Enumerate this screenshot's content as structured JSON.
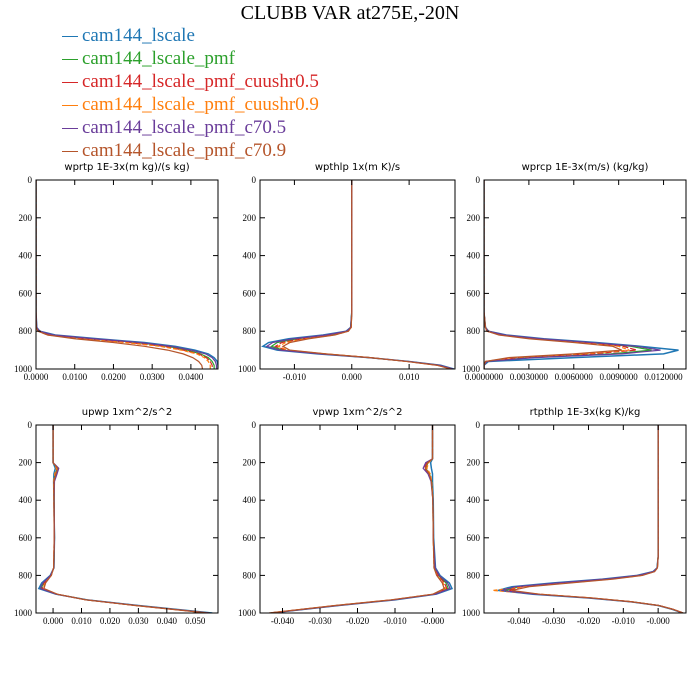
{
  "title": "CLUBB VAR at275E,-20N",
  "legend": [
    {
      "name": "cam144_lscale",
      "color": "#1f77b4"
    },
    {
      "name": "cam144_lscale_pmf",
      "color": "#2ca02c"
    },
    {
      "name": "cam144_lscale_pmf_cuushr0.5",
      "color": "#d62728"
    },
    {
      "name": "cam144_lscale_pmf_cuushr0.9",
      "color": "#ff7f0e"
    },
    {
      "name": "cam144_lscale_pmf_c70.5",
      "color": "#6a3d9a"
    },
    {
      "name": "cam144_lscale_pmf_c70.9",
      "color": "#b5552b"
    }
  ],
  "chart_data": [
    {
      "type": "line",
      "title": "wprtp  1E-3x(m kg)/(s kg)",
      "xlim": [
        0.0,
        0.047
      ],
      "ylim": [
        0,
        1000
      ],
      "y_inverted": true,
      "xticks": [
        0.0,
        0.01,
        0.02,
        0.03,
        0.04
      ],
      "xtick_labels": [
        "0.0000",
        "0.0100",
        "0.0200",
        "0.0300",
        "0.0400"
      ],
      "yticks": [
        0,
        200,
        400,
        600,
        800,
        1000
      ],
      "ytick_labels": [
        "0",
        "200",
        "400",
        "600",
        "800",
        "1000"
      ],
      "y": [
        0,
        700,
        780,
        800,
        820,
        840,
        860,
        880,
        900,
        920,
        940,
        960,
        980,
        1000
      ],
      "series": [
        {
          "values": [
            0,
            0,
            0.0002,
            0.001,
            0.005,
            0.016,
            0.028,
            0.036,
            0.041,
            0.0445,
            0.046,
            0.0468,
            0.047,
            0.047
          ]
        },
        {
          "values": [
            0,
            0,
            0.0001,
            0.0007,
            0.004,
            0.014,
            0.026,
            0.034,
            0.039,
            0.0425,
            0.0445,
            0.0455,
            0.046,
            0.046
          ]
        },
        {
          "values": [
            0,
            0,
            0.0001,
            0.0006,
            0.0035,
            0.012,
            0.024,
            0.033,
            0.038,
            0.042,
            0.044,
            0.045,
            0.0455,
            0.0455
          ]
        },
        {
          "values": [
            0,
            0,
            0.0001,
            0.0005,
            0.003,
            0.011,
            0.023,
            0.032,
            0.0375,
            0.0415,
            0.0435,
            0.0445,
            0.045,
            0.045
          ]
        },
        {
          "values": [
            0,
            0,
            0.0002,
            0.0009,
            0.0045,
            0.015,
            0.027,
            0.035,
            0.04,
            0.0438,
            0.0455,
            0.0463,
            0.0466,
            0.0466
          ]
        },
        {
          "values": [
            0,
            0,
            0.0001,
            0.0005,
            0.003,
            0.01,
            0.02,
            0.028,
            0.034,
            0.038,
            0.0405,
            0.042,
            0.0428,
            0.043
          ]
        }
      ]
    },
    {
      "type": "line",
      "title": "wpthlp  1x(m K)/s",
      "xlim": [
        -0.016,
        0.018
      ],
      "ylim": [
        0,
        1000
      ],
      "y_inverted": true,
      "xticks": [
        -0.01,
        0.0,
        0.01
      ],
      "xtick_labels": [
        "-0.010",
        "0.000",
        "0.010"
      ],
      "yticks": [
        0,
        200,
        400,
        600,
        800,
        1000
      ],
      "ytick_labels": [
        "0",
        "200",
        "400",
        "600",
        "800",
        "1000"
      ],
      "y": [
        0,
        700,
        780,
        800,
        820,
        840,
        860,
        880,
        900,
        920,
        940,
        960,
        980,
        1000
      ],
      "series": [
        {
          "values": [
            0,
            0,
            -0.0002,
            -0.001,
            -0.005,
            -0.011,
            -0.0145,
            -0.0155,
            -0.013,
            -0.006,
            0.003,
            0.01,
            0.0155,
            0.0178
          ]
        },
        {
          "values": [
            0,
            0,
            -0.0002,
            -0.0008,
            -0.004,
            -0.0095,
            -0.013,
            -0.014,
            -0.012,
            -0.005,
            0.003,
            0.0098,
            0.0152,
            0.0176
          ]
        },
        {
          "values": [
            0,
            0,
            -0.0001,
            -0.0007,
            -0.0035,
            -0.0085,
            -0.0122,
            -0.0133,
            -0.0115,
            -0.0048,
            0.0032,
            0.0097,
            0.015,
            0.0175
          ]
        },
        {
          "values": [
            0,
            0,
            -0.0001,
            -0.0006,
            -0.003,
            -0.008,
            -0.0115,
            -0.0128,
            -0.0112,
            -0.0046,
            0.0033,
            0.0096,
            0.0149,
            0.0174
          ]
        },
        {
          "values": [
            0,
            0,
            -0.0002,
            -0.0009,
            -0.0045,
            -0.0102,
            -0.0138,
            -0.0148,
            -0.0125,
            -0.0055,
            0.003,
            0.0099,
            0.0153,
            0.0177
          ]
        },
        {
          "values": [
            0,
            0,
            -0.0001,
            -0.0006,
            -0.003,
            -0.0075,
            -0.0108,
            -0.012,
            -0.0108,
            -0.0045,
            0.0032,
            0.0095,
            0.0148,
            0.0173
          ]
        }
      ]
    },
    {
      "type": "line",
      "title": "wprcp  1E-3x(m/s) (kg/kg)",
      "xlim": [
        0.0,
        0.0135
      ],
      "ylim": [
        0,
        1000
      ],
      "y_inverted": true,
      "xticks": [
        0.0,
        0.003,
        0.006,
        0.009,
        0.012
      ],
      "xtick_labels": [
        "0.0000000",
        "0.0030000",
        "0.0060000",
        "0.0090000",
        "0.0120000"
      ],
      "yticks": [
        0,
        200,
        400,
        600,
        800,
        1000
      ],
      "ytick_labels": [
        "0",
        "200",
        "400",
        "600",
        "800",
        "1000"
      ],
      "y": [
        0,
        700,
        780,
        800,
        820,
        840,
        860,
        880,
        900,
        920,
        940,
        960,
        980,
        1000
      ],
      "series": [
        {
          "values": [
            0,
            0,
            0.0001,
            0.0003,
            0.0015,
            0.004,
            0.0075,
            0.0105,
            0.013,
            0.012,
            0.006,
            0.0003,
            0,
            0
          ]
        },
        {
          "values": [
            0,
            0,
            0.0001,
            0.0003,
            0.0013,
            0.0036,
            0.007,
            0.0098,
            0.0112,
            0.0085,
            0.003,
            0.0002,
            0,
            0
          ]
        },
        {
          "values": [
            0,
            0,
            0.0001,
            0.0002,
            0.0012,
            0.0034,
            0.0066,
            0.0093,
            0.0102,
            0.0072,
            0.0022,
            0.0001,
            0,
            0
          ]
        },
        {
          "values": [
            0,
            0,
            0.0001,
            0.0002,
            0.0011,
            0.0032,
            0.0063,
            0.009,
            0.0097,
            0.0066,
            0.0019,
            0.0001,
            0,
            0
          ]
        },
        {
          "values": [
            0,
            0,
            0.0001,
            0.0003,
            0.0014,
            0.0038,
            0.0072,
            0.0102,
            0.0118,
            0.0092,
            0.0034,
            0.0002,
            0,
            0
          ]
        },
        {
          "values": [
            0,
            0,
            0.0001,
            0.0002,
            0.001,
            0.003,
            0.006,
            0.0086,
            0.0092,
            0.006,
            0.0016,
            0.0001,
            0,
            0
          ]
        }
      ]
    },
    {
      "type": "line",
      "title": "upwp  1xm^2/s^2",
      "xlim": [
        -0.006,
        0.058
      ],
      "ylim": [
        0,
        1000
      ],
      "y_inverted": true,
      "xticks": [
        0.0,
        0.01,
        0.02,
        0.03,
        0.04,
        0.05
      ],
      "xtick_labels": [
        "0.000",
        "0.010",
        "0.020",
        "0.030",
        "0.040",
        "0.050"
      ],
      "yticks": [
        0,
        200,
        400,
        600,
        800,
        1000
      ],
      "ytick_labels": [
        "0",
        "200",
        "400",
        "600",
        "800",
        "1000"
      ],
      "y": [
        0,
        200,
        230,
        260,
        300,
        400,
        600,
        760,
        800,
        840,
        870,
        900,
        930,
        960,
        1000
      ],
      "series": [
        {
          "values": [
            0,
            0,
            0.0008,
            0.0003,
            0.0002,
            0.0003,
            0.0005,
            0.0003,
            -0.001,
            -0.004,
            -0.005,
            0.001,
            0.012,
            0.03,
            0.056
          ]
        },
        {
          "values": [
            0,
            0,
            0.0015,
            0.0008,
            0.0004,
            0.0004,
            0.0005,
            0.0003,
            -0.0008,
            -0.0033,
            -0.0042,
            0.0012,
            0.0118,
            0.0295,
            0.0552
          ]
        },
        {
          "values": [
            0,
            0,
            0.0018,
            0.0012,
            0.0003,
            0.0003,
            0.0004,
            0.0002,
            -0.0007,
            -0.003,
            -0.0038,
            0.0013,
            0.0116,
            0.0292,
            0.0548
          ]
        },
        {
          "values": [
            0,
            0,
            0.0012,
            0.0006,
            0.0002,
            0.0003,
            0.0004,
            0.0002,
            -0.0006,
            -0.0028,
            -0.0035,
            0.0014,
            0.0115,
            0.029,
            0.0545
          ]
        },
        {
          "values": [
            0,
            0,
            0.002,
            0.0014,
            0.0005,
            0.0004,
            0.0005,
            0.0003,
            -0.0009,
            -0.0036,
            -0.0045,
            0.0011,
            0.0117,
            0.0294,
            0.055
          ]
        },
        {
          "values": [
            0,
            0,
            0.0016,
            0.001,
            0.0003,
            0.0003,
            0.0004,
            0.0002,
            -0.0006,
            -0.0026,
            -0.0032,
            0.0015,
            0.0114,
            0.0288,
            0.0542
          ]
        }
      ]
    },
    {
      "type": "line",
      "title": "vpwp  1xm^2/s^2",
      "xlim": [
        -0.046,
        0.006
      ],
      "ylim": [
        0,
        1000
      ],
      "y_inverted": true,
      "xticks": [
        -0.04,
        -0.03,
        -0.02,
        -0.01,
        0.0
      ],
      "xtick_labels": [
        "-0.040",
        "-0.030",
        "-0.020",
        "-0.010",
        "-0.000"
      ],
      "yticks": [
        0,
        200,
        400,
        600,
        800,
        1000
      ],
      "ytick_labels": [
        "0",
        "200",
        "400",
        "600",
        "800",
        "1000"
      ],
      "y": [
        0,
        180,
        200,
        230,
        260,
        300,
        400,
        600,
        760,
        800,
        840,
        870,
        900,
        930,
        960,
        1000
      ],
      "series": [
        {
          "values": [
            0,
            0,
            -0.0005,
            -0.0003,
            0,
            0,
            0.0002,
            0.0003,
            0.0008,
            0.002,
            0.0045,
            0.0052,
            0.001,
            -0.01,
            -0.025,
            -0.043
          ]
        },
        {
          "values": [
            0,
            0,
            -0.0012,
            -0.0018,
            -0.0008,
            -0.0002,
            0.0001,
            0.0002,
            0.0006,
            0.0016,
            0.0036,
            0.0042,
            0.0005,
            -0.0105,
            -0.0255,
            -0.0432
          ]
        },
        {
          "values": [
            0,
            0,
            -0.0015,
            -0.0022,
            -0.001,
            -0.0003,
            0.0001,
            0.0002,
            0.0005,
            0.0014,
            0.0032,
            0.0038,
            0.0003,
            -0.0107,
            -0.0257,
            -0.0434
          ]
        },
        {
          "values": [
            0,
            0,
            -0.001,
            -0.0015,
            -0.0006,
            -0.0002,
            0.0001,
            0.0002,
            0.0004,
            0.0012,
            0.0028,
            0.0034,
            0.0002,
            -0.0108,
            -0.0258,
            -0.0435
          ]
        },
        {
          "values": [
            0,
            0,
            -0.0018,
            -0.0025,
            -0.0012,
            -0.0004,
            0.0001,
            0.0002,
            0.0007,
            0.0018,
            0.004,
            0.0047,
            0.0008,
            -0.0102,
            -0.0252,
            -0.043
          ]
        },
        {
          "values": [
            0,
            0,
            -0.0013,
            -0.0019,
            -0.0009,
            -0.0003,
            0.0001,
            0.0002,
            0.0004,
            0.0011,
            0.0026,
            0.0031,
            0.0001,
            -0.011,
            -0.026,
            -0.0436
          ]
        }
      ]
    },
    {
      "type": "line",
      "title": "rtpthlp  1E-3x(kg K)/kg",
      "xlim": [
        -0.05,
        0.008
      ],
      "ylim": [
        0,
        1000
      ],
      "y_inverted": true,
      "xticks": [
        -0.04,
        -0.03,
        -0.02,
        -0.01,
        0.0
      ],
      "xtick_labels": [
        "-0.040",
        "-0.030",
        "-0.020",
        "-0.010",
        "-0.000"
      ],
      "yticks": [
        0,
        200,
        400,
        600,
        800,
        1000
      ],
      "ytick_labels": [
        "0",
        "200",
        "400",
        "600",
        "800",
        "1000"
      ],
      "y": [
        0,
        700,
        760,
        780,
        800,
        820,
        840,
        860,
        880,
        900,
        920,
        940,
        960,
        980,
        1000
      ],
      "series": [
        {
          "values": [
            0,
            0,
            -0.0003,
            -0.0015,
            -0.006,
            -0.016,
            -0.03,
            -0.042,
            -0.046,
            -0.036,
            -0.02,
            -0.008,
            0.0,
            0.004,
            0.007
          ]
        },
        {
          "values": [
            0,
            0,
            -0.0003,
            -0.0013,
            -0.0055,
            -0.015,
            -0.028,
            -0.04,
            -0.044,
            -0.035,
            -0.0195,
            -0.0078,
            0.0001,
            0.0041,
            0.0071
          ]
        },
        {
          "values": [
            0,
            0,
            -0.0002,
            -0.0012,
            -0.005,
            -0.014,
            -0.027,
            -0.039,
            -0.043,
            -0.0345,
            -0.0192,
            -0.0077,
            0.0002,
            0.0042,
            0.0072
          ]
        },
        {
          "values": [
            0,
            0,
            -0.0002,
            -0.0011,
            -0.0048,
            -0.0135,
            -0.026,
            -0.0385,
            -0.0475,
            -0.034,
            -0.019,
            -0.0076,
            0.0002,
            0.0042,
            0.0072
          ]
        },
        {
          "values": [
            0,
            0,
            -0.0003,
            -0.0014,
            -0.0058,
            -0.0155,
            -0.029,
            -0.041,
            -0.045,
            -0.0355,
            -0.0198,
            -0.0079,
            0.0001,
            0.0041,
            0.0071
          ]
        },
        {
          "values": [
            0,
            0,
            -0.0002,
            -0.001,
            -0.0045,
            -0.013,
            -0.025,
            -0.037,
            -0.042,
            -0.034,
            -0.019,
            -0.0076,
            0.0002,
            0.0042,
            0.0072
          ]
        }
      ]
    }
  ]
}
